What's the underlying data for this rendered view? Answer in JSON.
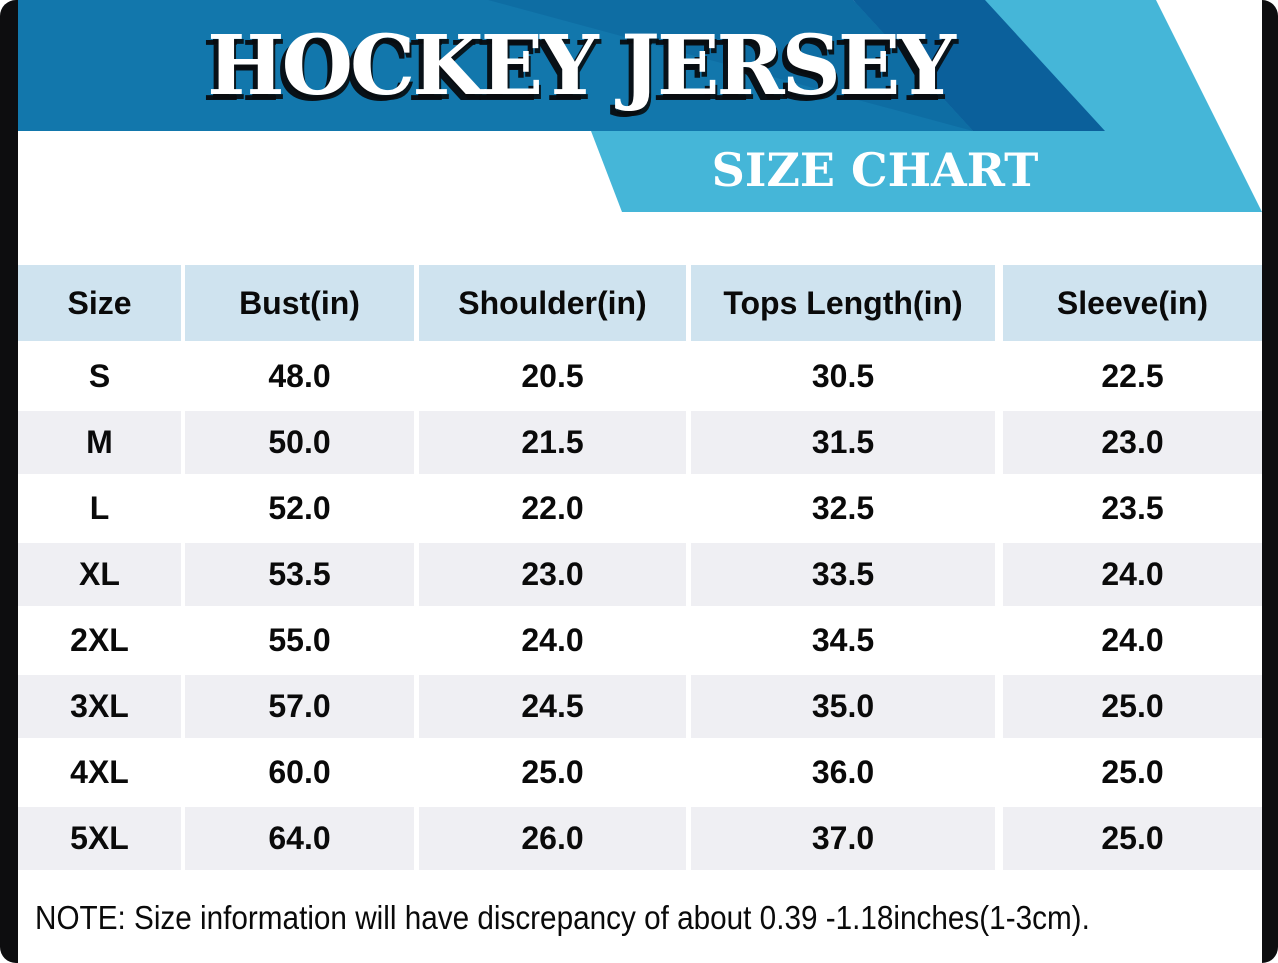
{
  "banner": {
    "title": "HOCKEY JERSEY",
    "subtitle": "SIZE CHART"
  },
  "chart_data": {
    "type": "table",
    "title": "HOCKEY JERSEY",
    "subtitle": "SIZE CHART",
    "columns": [
      "Size",
      "Bust(in)",
      "Shoulder(in)",
      "Tops Length(in)",
      "Sleeve(in)"
    ],
    "rows": [
      [
        "S",
        "48.0",
        "20.5",
        "30.5",
        "22.5"
      ],
      [
        "M",
        "50.0",
        "21.5",
        "31.5",
        "23.0"
      ],
      [
        "L",
        "52.0",
        "22.0",
        "32.5",
        "23.5"
      ],
      [
        "XL",
        "53.5",
        "23.0",
        "33.5",
        "24.0"
      ],
      [
        "2XL",
        "55.0",
        "24.0",
        "34.5",
        "24.0"
      ],
      [
        "3XL",
        "57.0",
        "24.5",
        "35.0",
        "25.0"
      ],
      [
        "4XL",
        "60.0",
        "25.0",
        "36.0",
        "25.0"
      ],
      [
        "5XL",
        "64.0",
        "26.0",
        "37.0",
        "25.0"
      ]
    ],
    "units": "inches",
    "layout": {
      "header_background": "#cfe3ef",
      "alternating_row_background": "#efeff3"
    }
  },
  "note": "NOTE: Size information will have discrepancy of about 0.39 -1.18inches(1-3cm).",
  "colors": {
    "banner_main_blue": "#1277ac",
    "banner_mid_blue": "#0e6da3",
    "banner_dark_blue": "#0b609b",
    "banner_light_blue": "#45b6d8",
    "table_header_bg": "#cfe3ef",
    "table_alt_row_bg": "#efeff3",
    "frame_black": "#0d0d0f",
    "text_black": "#0a0a0a",
    "text_white": "#ffffff"
  }
}
